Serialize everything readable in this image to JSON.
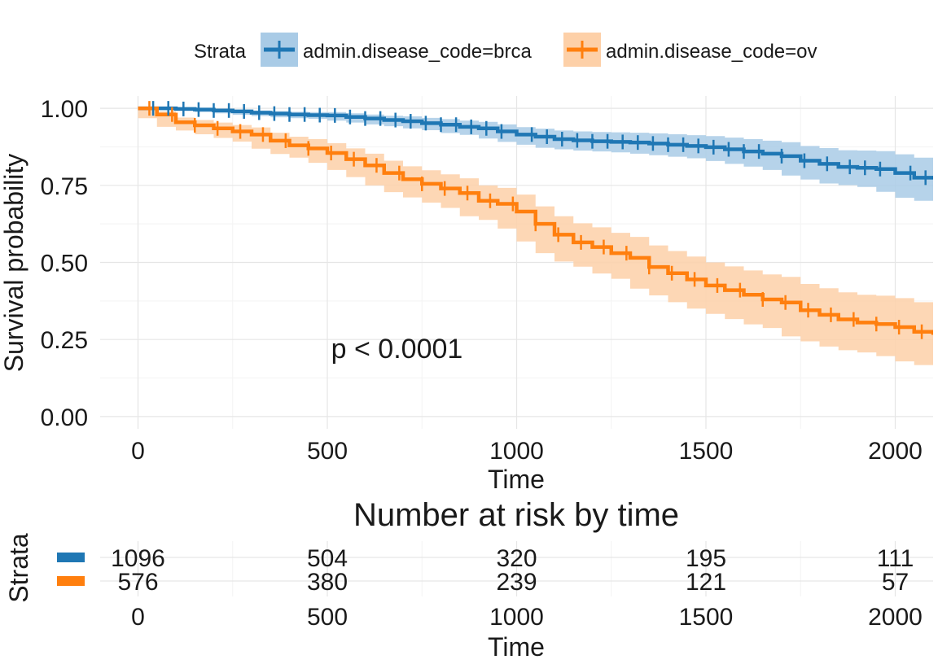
{
  "chart_data": [
    {
      "type": "line",
      "subtype": "kaplan-meier",
      "legend_title": "Strata",
      "legend_position": "top",
      "xlabel": "Time",
      "ylabel": "Survival probability",
      "xlim": [
        -100,
        2100
      ],
      "ylim": [
        -0.04,
        1.04
      ],
      "xticks": [
        0,
        500,
        1000,
        1500,
        2000
      ],
      "yticks": [
        0.0,
        0.25,
        0.5,
        0.75,
        1.0
      ],
      "ytick_labels": [
        "0.00",
        "0.25",
        "0.50",
        "0.75",
        "1.00"
      ],
      "grid": true,
      "annotation": "p < 0.0001",
      "annotation_at": [
        510,
        0.19
      ],
      "series": [
        {
          "name": "admin.disease_code=brca",
          "color": "#1f77b4",
          "band_color": "#a9cbe6",
          "x": [
            0,
            50,
            100,
            150,
            200,
            250,
            300,
            350,
            400,
            450,
            500,
            550,
            600,
            650,
            700,
            750,
            800,
            850,
            900,
            950,
            1000,
            1050,
            1100,
            1150,
            1200,
            1250,
            1300,
            1350,
            1400,
            1450,
            1500,
            1550,
            1600,
            1650,
            1700,
            1750,
            1800,
            1850,
            1900,
            1950,
            2000,
            2050,
            2100
          ],
          "y": [
            1.0,
            1.0,
            0.998,
            0.996,
            0.993,
            0.99,
            0.986,
            0.983,
            0.98,
            0.978,
            0.977,
            0.972,
            0.967,
            0.962,
            0.958,
            0.952,
            0.947,
            0.94,
            0.935,
            0.925,
            0.915,
            0.908,
            0.9,
            0.896,
            0.893,
            0.891,
            0.889,
            0.886,
            0.882,
            0.878,
            0.874,
            0.867,
            0.86,
            0.853,
            0.845,
            0.83,
            0.82,
            0.81,
            0.807,
            0.803,
            0.79,
            0.775,
            0.77
          ],
          "lower": [
            1.0,
            0.999,
            0.995,
            0.992,
            0.988,
            0.984,
            0.979,
            0.975,
            0.971,
            0.968,
            0.966,
            0.96,
            0.954,
            0.948,
            0.942,
            0.935,
            0.929,
            0.92,
            0.914,
            0.902,
            0.891,
            0.882,
            0.872,
            0.867,
            0.863,
            0.86,
            0.857,
            0.853,
            0.848,
            0.843,
            0.838,
            0.829,
            0.82,
            0.811,
            0.8,
            0.782,
            0.769,
            0.756,
            0.751,
            0.745,
            0.729,
            0.71,
            0.7
          ],
          "upper": [
            1.0,
            1.0,
            1.0,
            1.0,
            0.998,
            0.996,
            0.993,
            0.991,
            0.989,
            0.988,
            0.988,
            0.984,
            0.98,
            0.976,
            0.974,
            0.969,
            0.965,
            0.96,
            0.956,
            0.948,
            0.939,
            0.934,
            0.928,
            0.925,
            0.923,
            0.922,
            0.921,
            0.919,
            0.916,
            0.913,
            0.91,
            0.905,
            0.9,
            0.895,
            0.89,
            0.878,
            0.871,
            0.864,
            0.863,
            0.861,
            0.851,
            0.84,
            0.84
          ],
          "censor_x": [
            40,
            80,
            120,
            160,
            200,
            240,
            280,
            320,
            360,
            400,
            440,
            480,
            520,
            560,
            600,
            640,
            680,
            720,
            760,
            800,
            840,
            880,
            920,
            960,
            1040,
            1080,
            1120,
            1160,
            1200,
            1240,
            1280,
            1320,
            1360,
            1400,
            1440,
            1480,
            1520,
            1560,
            1600,
            1640,
            1700,
            1760,
            1820,
            1880,
            1920,
            1960,
            2040,
            2080
          ]
        },
        {
          "name": "admin.disease_code=ov",
          "color": "#ff7f0e",
          "band_color": "#fdd0a8",
          "x": [
            0,
            50,
            100,
            150,
            200,
            250,
            300,
            350,
            400,
            450,
            500,
            550,
            600,
            650,
            700,
            750,
            800,
            850,
            900,
            950,
            1000,
            1050,
            1100,
            1150,
            1200,
            1250,
            1300,
            1350,
            1400,
            1450,
            1500,
            1550,
            1600,
            1650,
            1700,
            1750,
            1800,
            1850,
            1900,
            1950,
            2000,
            2050,
            2100
          ],
          "y": [
            1.0,
            0.98,
            0.955,
            0.945,
            0.935,
            0.925,
            0.915,
            0.895,
            0.88,
            0.87,
            0.855,
            0.835,
            0.815,
            0.79,
            0.77,
            0.755,
            0.74,
            0.725,
            0.7,
            0.69,
            0.665,
            0.625,
            0.59,
            0.565,
            0.55,
            0.53,
            0.515,
            0.485,
            0.465,
            0.445,
            0.425,
            0.41,
            0.395,
            0.38,
            0.37,
            0.345,
            0.33,
            0.315,
            0.305,
            0.3,
            0.29,
            0.275,
            0.265
          ],
          "lower": [
            1.0,
            0.968,
            0.94,
            0.928,
            0.916,
            0.904,
            0.892,
            0.869,
            0.852,
            0.84,
            0.823,
            0.8,
            0.777,
            0.75,
            0.728,
            0.711,
            0.694,
            0.677,
            0.65,
            0.638,
            0.61,
            0.568,
            0.53,
            0.503,
            0.486,
            0.464,
            0.447,
            0.415,
            0.393,
            0.371,
            0.35,
            0.333,
            0.316,
            0.299,
            0.287,
            0.26,
            0.244,
            0.227,
            0.215,
            0.208,
            0.196,
            0.179,
            0.167
          ],
          "upper": [
            1.0,
            0.99,
            0.97,
            0.962,
            0.954,
            0.946,
            0.938,
            0.921,
            0.908,
            0.9,
            0.887,
            0.87,
            0.853,
            0.83,
            0.812,
            0.799,
            0.786,
            0.773,
            0.75,
            0.742,
            0.72,
            0.682,
            0.65,
            0.627,
            0.614,
            0.596,
            0.583,
            0.555,
            0.537,
            0.519,
            0.5,
            0.487,
            0.474,
            0.461,
            0.453,
            0.43,
            0.416,
            0.403,
            0.395,
            0.392,
            0.384,
            0.371,
            0.363
          ],
          "censor_x": [
            30,
            90,
            150,
            210,
            270,
            330,
            390,
            450,
            510,
            570,
            630,
            690,
            750,
            810,
            870,
            930,
            990,
            1050,
            1110,
            1170,
            1230,
            1290,
            1350,
            1410,
            1470,
            1530,
            1590,
            1650,
            1710,
            1770,
            1830,
            1890,
            1950,
            2010,
            2070
          ]
        }
      ]
    },
    {
      "type": "table",
      "title": "Number at risk by time",
      "ylabel": "Strata",
      "xlabel": "Time",
      "xlim": [
        -100,
        2100
      ],
      "xticks": [
        0,
        500,
        1000,
        1500,
        2000
      ],
      "rows": [
        {
          "color": "#1f77b4",
          "values": [
            1096,
            504,
            320,
            195,
            111
          ]
        },
        {
          "color": "#ff7f0e",
          "values": [
            576,
            380,
            239,
            121,
            57
          ]
        }
      ]
    }
  ]
}
